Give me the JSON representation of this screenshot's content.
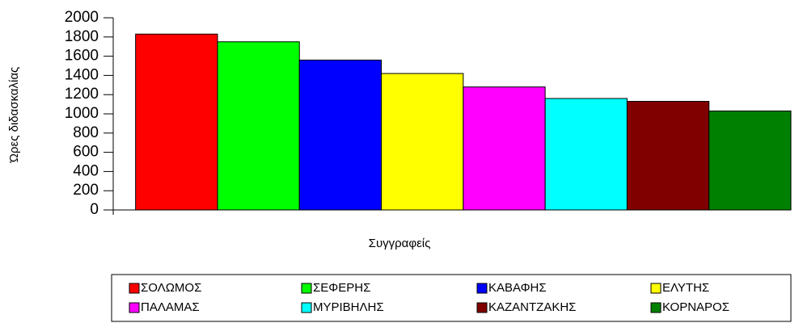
{
  "chart_data": {
    "type": "bar",
    "x_label": "Συγγραφείς",
    "y_label": "Ώρες διδασκαλίας",
    "categories": [
      null
    ],
    "series": [
      {
        "name": "ΣΟΛΩΜΟΣ",
        "color": "#ff0000",
        "values": [
          1830
        ]
      },
      {
        "name": "ΣΕΦΕΡΗΣ",
        "color": "#00ff00",
        "values": [
          1750
        ]
      },
      {
        "name": "ΚΑΒΑΦΗΣ",
        "color": "#0000ff",
        "values": [
          1560
        ]
      },
      {
        "name": "ΕΛΥΤΗΣ",
        "color": "#ffff00",
        "values": [
          1420
        ]
      },
      {
        "name": "ΠΑΛΑΜΑΣ",
        "color": "#ff00ff",
        "values": [
          1280
        ]
      },
      {
        "name": "ΜΥΡΙΒΗΛΗΣ",
        "color": "#00ffff",
        "values": [
          1160
        ]
      },
      {
        "name": "ΚΑΖΑΝΤΖΑΚΗΣ",
        "color": "#800000",
        "values": [
          1130
        ]
      },
      {
        "name": "ΚΟΡΝΑΡΟΣ",
        "color": "#008000",
        "values": [
          1030
        ]
      }
    ],
    "ylim": [
      0,
      2000
    ],
    "yticks": [
      0,
      200,
      400,
      600,
      800,
      1000,
      1200,
      1400,
      1600,
      1800,
      2000
    ],
    "legend": "bottom"
  }
}
